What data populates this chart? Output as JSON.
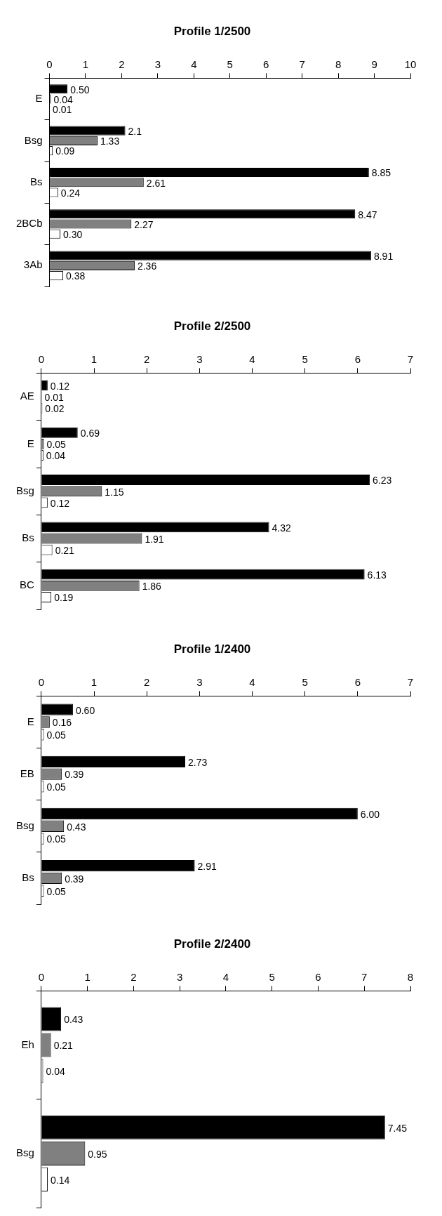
{
  "chart_data": [
    {
      "type": "bar",
      "orientation": "horizontal",
      "title": "Profile 1/2500",
      "categories": [
        "E",
        "Bsg",
        "Bs",
        "2BCb",
        "3Ab"
      ],
      "xlim": [
        0,
        10
      ],
      "xticks": [
        0,
        1,
        2,
        3,
        4,
        5,
        6,
        7,
        8,
        9,
        10
      ],
      "series": [
        {
          "color": "#000000",
          "values": [
            0.5,
            2.1,
            8.85,
            8.47,
            8.91
          ],
          "value_labels": [
            "0.50",
            "2.1",
            "8.85",
            "8.47",
            "8.91"
          ]
        },
        {
          "color": "#808080",
          "values": [
            0.04,
            1.33,
            2.61,
            2.27,
            2.36
          ],
          "value_labels": [
            "0.04",
            "1.33",
            "2.61",
            "2.27",
            "2.36"
          ]
        },
        {
          "color": "#ffffff",
          "values": [
            0.01,
            0.09,
            0.24,
            0.3,
            0.38
          ],
          "value_labels": [
            "0.01",
            "0.09",
            "0.24",
            "0.30",
            "0.38"
          ]
        }
      ]
    },
    {
      "type": "bar",
      "orientation": "horizontal",
      "title": "Profile 2/2500",
      "categories": [
        "AE",
        "E",
        "Bsg",
        "Bs",
        "BC"
      ],
      "xlim": [
        0,
        7
      ],
      "xticks": [
        0,
        1,
        2,
        3,
        4,
        5,
        6,
        7
      ],
      "series": [
        {
          "color": "#000000",
          "values": [
            0.12,
            0.69,
            6.23,
            4.32,
            6.13
          ],
          "value_labels": [
            "0.12",
            "0.69",
            "6.23",
            "4.32",
            "6.13"
          ]
        },
        {
          "color": "#808080",
          "values": [
            0.01,
            0.05,
            1.15,
            1.91,
            1.86
          ],
          "value_labels": [
            "0.01",
            "0.05",
            "1.15",
            "1.91",
            "1.86"
          ]
        },
        {
          "color": "#ffffff",
          "values": [
            0.02,
            0.04,
            0.12,
            0.21,
            0.19
          ],
          "value_labels": [
            "0.02",
            "0.04",
            "0.12",
            "0.21",
            "0.19"
          ]
        }
      ]
    },
    {
      "type": "bar",
      "orientation": "horizontal",
      "title": "Profile 1/2400",
      "categories": [
        "E",
        "EB",
        "Bsg",
        "Bs"
      ],
      "xlim": [
        0,
        7
      ],
      "xticks": [
        0,
        1,
        2,
        3,
        4,
        5,
        6,
        7
      ],
      "series": [
        {
          "color": "#000000",
          "values": [
            0.6,
            2.73,
            6.0,
            2.91
          ],
          "value_labels": [
            "0.60",
            "2.73",
            "6.00",
            "2.91"
          ]
        },
        {
          "color": "#808080",
          "values": [
            0.16,
            0.39,
            0.43,
            0.39
          ],
          "value_labels": [
            "0.16",
            "0.39",
            "0.43",
            "0.39"
          ]
        },
        {
          "color": "#ffffff",
          "values": [
            0.05,
            0.05,
            0.05,
            0.05
          ],
          "value_labels": [
            "0.05",
            "0.05",
            "0.05",
            "0.05"
          ]
        }
      ]
    },
    {
      "type": "bar",
      "orientation": "horizontal",
      "title": "Profile 2/2400",
      "categories": [
        "Eh",
        "Bsg"
      ],
      "xlim": [
        0,
        8
      ],
      "xticks": [
        0,
        1,
        2,
        3,
        4,
        5,
        6,
        7,
        8
      ],
      "series": [
        {
          "color": "#000000",
          "values": [
            0.43,
            7.45
          ],
          "value_labels": [
            "0.43",
            "7.45"
          ]
        },
        {
          "color": "#808080",
          "values": [
            0.21,
            0.95
          ],
          "value_labels": [
            "0.21",
            "0.95"
          ]
        },
        {
          "color": "#ffffff",
          "values": [
            0.04,
            0.14
          ],
          "value_labels": [
            "0.04",
            "0.14"
          ]
        }
      ]
    }
  ]
}
